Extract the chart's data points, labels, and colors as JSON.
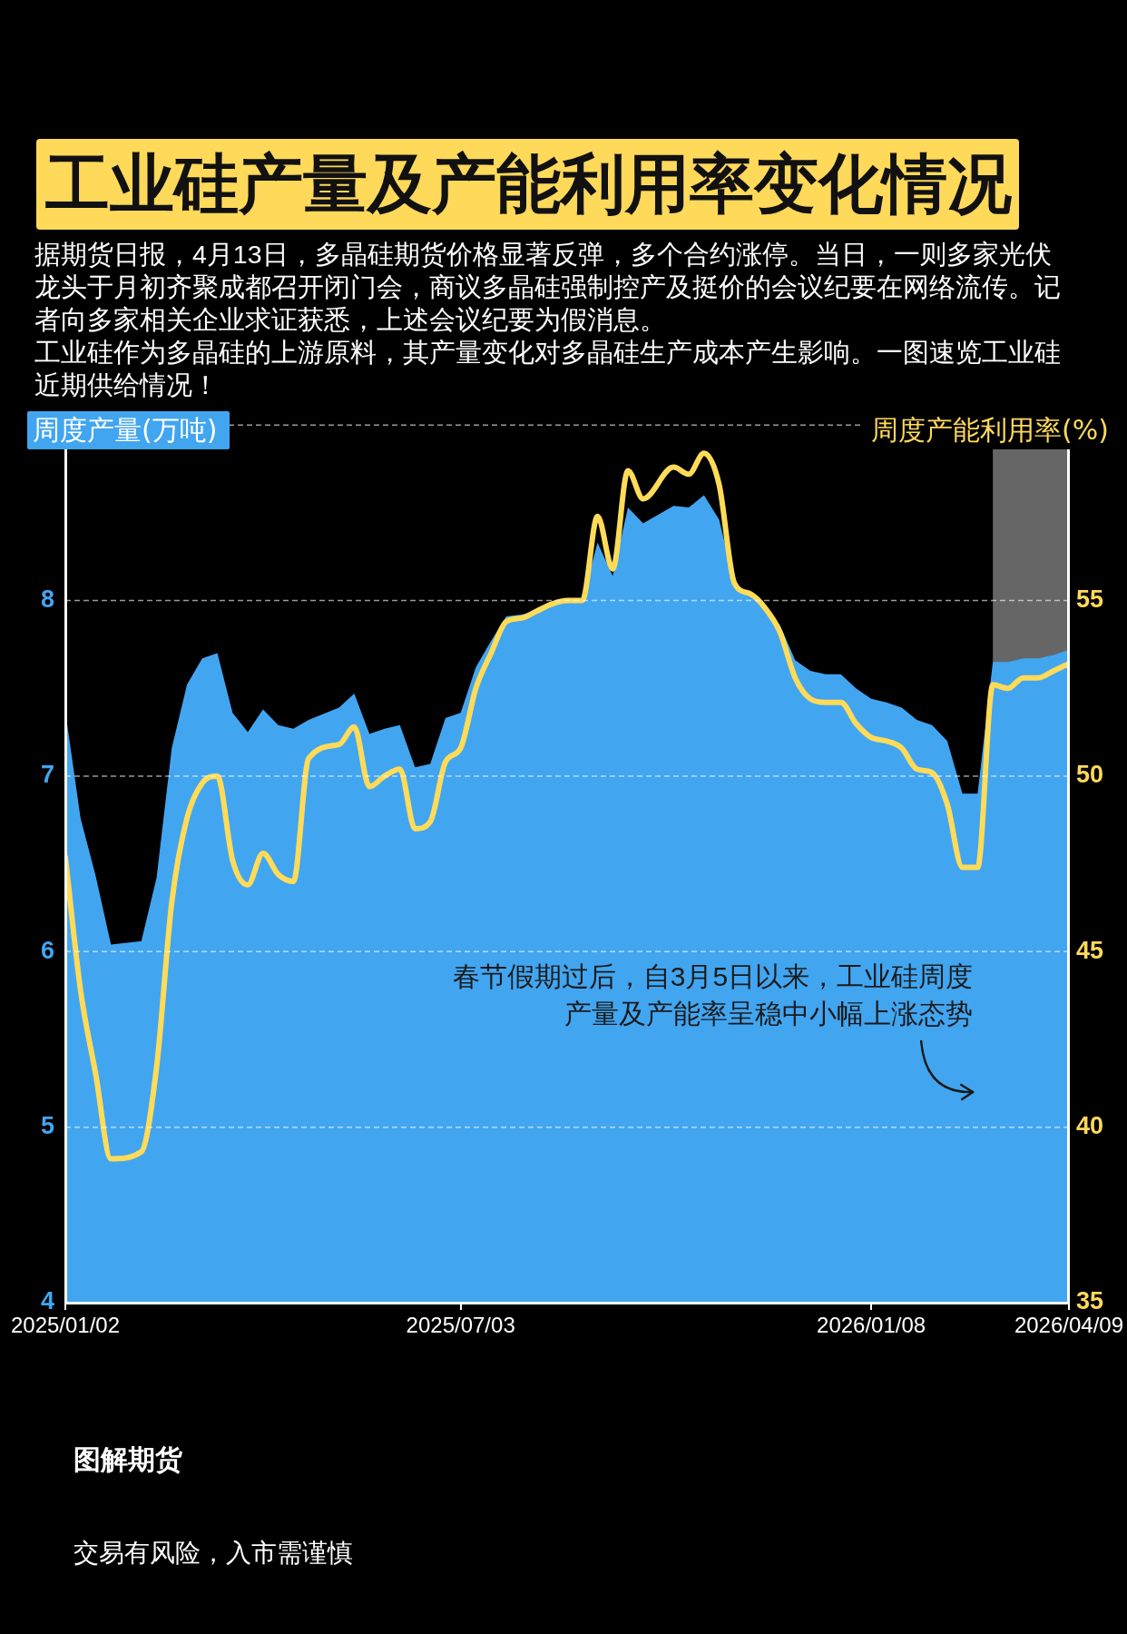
{
  "chart_data": {
    "type": "area",
    "title": "工业硅产量及产能利用率变化情况",
    "subtitle": "据期货日报，4月13日，多晶硅期货价格显著反弹，多个合约涨停。当日，一则多家光伏龙头于月初齐聚成都召开闭门会，商议多晶硅强制控产及挺价的会议纪要在网络流传。记者向多家相关企业求证获悉，上述会议纪要为假消息。",
    "ylabel": "周度产量(万吨)",
    "y2label": "周度产能利用率(%)",
    "x": [
      "2025-01-02",
      "2025-01-09",
      "2025-01-16",
      "2025-01-23",
      "2025-02-06",
      "2025-02-13",
      "2025-02-20",
      "2025-02-27",
      "2025-03-06",
      "2025-03-13",
      "2025-03-20",
      "2025-03-27",
      "2025-04-03",
      "2025-04-10",
      "2025-04-17",
      "2025-04-24",
      "2025-05-08",
      "2025-05-15",
      "2025-05-22",
      "2025-05-29",
      "2025-06-05",
      "2025-06-12",
      "2025-06-19",
      "2025-06-26",
      "2025-07-03",
      "2025-07-10",
      "2025-07-17",
      "2025-07-24",
      "2025-07-31",
      "2025-08-07",
      "2025-08-14",
      "2025-08-21",
      "2025-08-28",
      "2025-09-04",
      "2025-09-11",
      "2025-09-18",
      "2025-09-25",
      "2025-10-09",
      "2025-10-16",
      "2025-10-23",
      "2025-10-30",
      "2025-11-06",
      "2025-11-13",
      "2025-11-20",
      "2025-11-27",
      "2025-12-04",
      "2025-12-11",
      "2025-12-18",
      "2025-12-25",
      "2026-01-01",
      "2026-01-08",
      "2026-01-15",
      "2026-01-22",
      "2026-01-29",
      "2026-02-05",
      "2026-02-12",
      "2026-02-19",
      "2026-02-26",
      "2026-03-05",
      "2026-03-12",
      "2026-03-19",
      "2026-03-26",
      "2026-04-02",
      "2026-04-09"
    ],
    "series": [
      {
        "color": "#42a5f0",
        "values": [
          7.37,
          6.76,
          6.43,
          6.04,
          6.06,
          6.42,
          7.16,
          7.52,
          7.67,
          7.7,
          7.36,
          7.25,
          7.38,
          7.29,
          7.27,
          7.32,
          7.39,
          7.47,
          7.24,
          7.27,
          7.29,
          7.05,
          7.07,
          7.33,
          7.36,
          7.62,
          7.77,
          7.91,
          7.92,
          7.94,
          7.98,
          8.0,
          8.0,
          8.33,
          8.14,
          8.53,
          8.44,
          8.54,
          8.53,
          8.6,
          8.46,
          8.1,
          8.04,
          7.95,
          7.86,
          7.66,
          7.6,
          7.58,
          7.58,
          7.5,
          7.44,
          7.42,
          7.39,
          7.32,
          7.29,
          7.2,
          6.9,
          6.9,
          7.65,
          7.65,
          7.67,
          7.67,
          7.69,
          7.72
        ]
      },
      {
        "type": "line",
        "axis": "y2",
        "color": "#ffdb58",
        "values": [
          47.7,
          43.9,
          41.5,
          39.1,
          39.3,
          41.7,
          46.4,
          48.8,
          49.8,
          50.0,
          47.6,
          46.9,
          47.8,
          47.2,
          47.0,
          50.5,
          50.9,
          51.4,
          49.7,
          50.0,
          50.2,
          48.5,
          48.7,
          50.4,
          50.8,
          52.5,
          53.5,
          54.4,
          54.5,
          54.7,
          54.9,
          55.0,
          55.0,
          57.4,
          55.9,
          58.7,
          57.9,
          58.8,
          58.6,
          59.2,
          58.3,
          55.5,
          55.2,
          54.8,
          54.1,
          52.8,
          52.2,
          52.1,
          52.1,
          51.5,
          51.1,
          51.0,
          50.8,
          50.2,
          50.1,
          49.2,
          47.4,
          47.4,
          52.6,
          52.5,
          52.8,
          52.8,
          53.0,
          53.2
        ]
      }
    ],
    "xlim": [
      "2025-01-02",
      "2026-04-09"
    ],
    "xticks": [
      {
        "value": "2025-01-02",
        "label": "2025/01/02"
      },
      {
        "value": "2025-07-03",
        "label": "2025/07/03"
      },
      {
        "value": "2026-01-08",
        "label": "2026/01/08"
      },
      {
        "value": "2026-04-09",
        "label": "2026/04/09"
      }
    ],
    "ylim": [
      4,
      9
    ],
    "yticks": [
      4,
      5,
      6,
      7,
      8,
      {
        "value": 9,
        "label": null
      }
    ],
    "y2lim": [
      35,
      60
    ],
    "y2ticks": [
      35,
      40,
      45,
      50,
      55
    ],
    "grid": "y",
    "bands": [
      {
        "axis": "x",
        "from": "2026-03-05",
        "to": "2026-04-09",
        "color": "#ffffff"
      }
    ],
    "annotations": [
      {
        "text": "春节假期过后，自3月5日以来，工业硅周度产量及产能率呈稳中小幅上涨态势",
        "x": "2026-03-05",
        "y": 5.2
      },
      "工业硅作为多晶硅的上游原料，其产量变化对多晶硅生产成本产生影响。一图速览工业硅近期供给情况！",
      "图解期货",
      "交易有风险，入市需谨慎"
    ]
  }
}
